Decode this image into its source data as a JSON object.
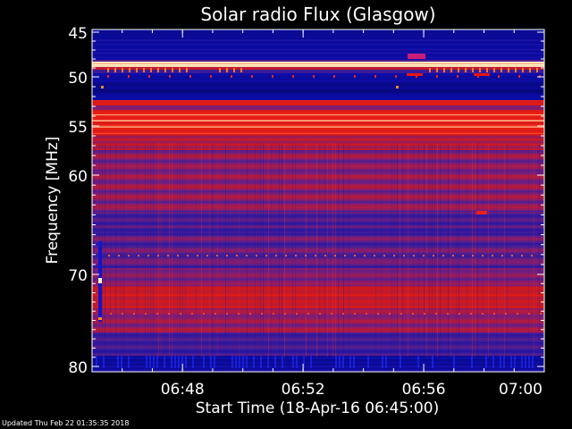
{
  "chart_data": {
    "type": "heatmap",
    "title": "Solar radio Flux (Glasgow)",
    "ylabel": "Frequency [MHz]",
    "xlabel": "Start Time (18-Apr-16 06:45:00)",
    "xlim": [
      "06:45",
      "07:00"
    ],
    "ylim": [
      45,
      80
    ],
    "x_ticks": [
      "06:48",
      "06:52",
      "06:56",
      "07:00"
    ],
    "y_ticks": [
      45,
      50,
      55,
      60,
      70,
      80
    ],
    "y_axis_inverted": true,
    "colors": {
      "background": "#000000",
      "axis": "#ffffff",
      "low": "#0c0ca8",
      "mid": "#8c1c6a",
      "high": "#f02010",
      "peak": "#fff7c8"
    }
  },
  "footer": {
    "updated": "Updated Thu Feb 22 01:35:35 2018"
  }
}
